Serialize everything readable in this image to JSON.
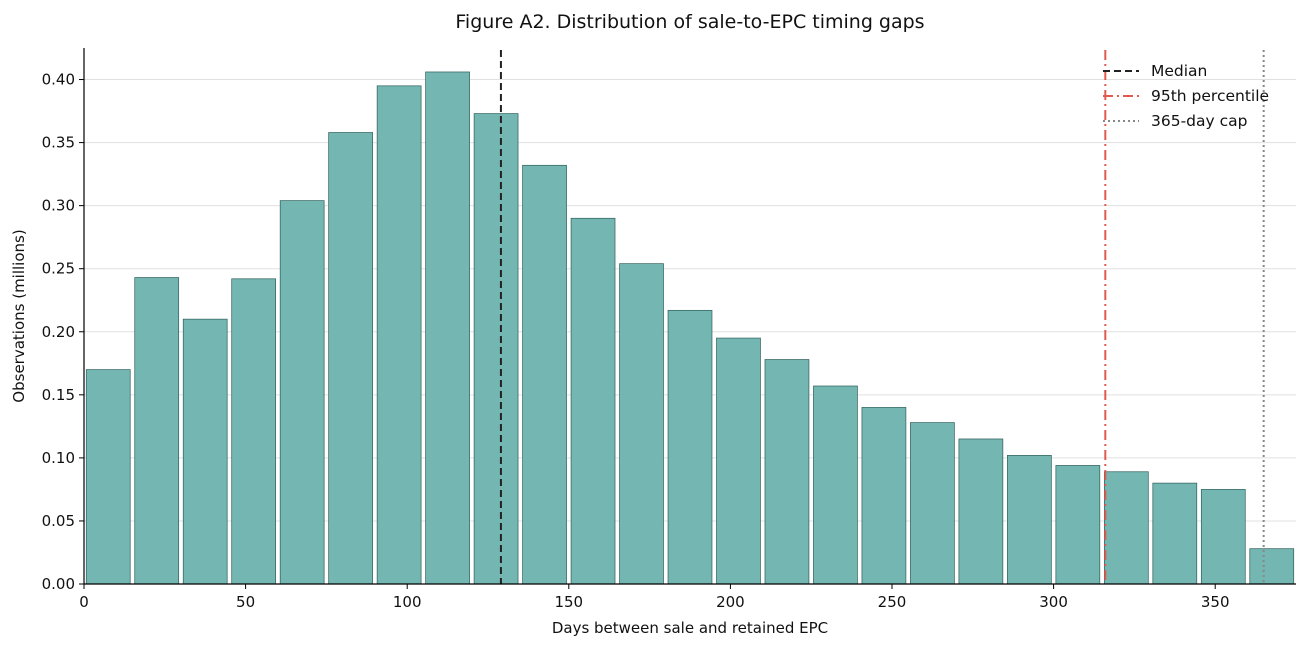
{
  "chart_data": {
    "type": "bar",
    "title": "Figure A2. Distribution of sale-to-EPC timing gaps",
    "xlabel": "Days between sale and retained EPC",
    "ylabel": "Observations (millions)",
    "xlim": [
      0,
      375
    ],
    "ylim": [
      0,
      0.425
    ],
    "bin_width": 15,
    "bin_starts": [
      0,
      15,
      30,
      45,
      60,
      75,
      90,
      105,
      120,
      135,
      150,
      165,
      180,
      195,
      210,
      225,
      240,
      255,
      270,
      285,
      300,
      315,
      330,
      345,
      360
    ],
    "values": [
      0.17,
      0.243,
      0.21,
      0.242,
      0.304,
      0.358,
      0.395,
      0.406,
      0.373,
      0.332,
      0.29,
      0.254,
      0.217,
      0.195,
      0.178,
      0.157,
      0.14,
      0.128,
      0.115,
      0.102,
      0.094,
      0.089,
      0.08,
      0.075,
      0.028
    ],
    "bar_color": "#73b6b2",
    "x_ticks": [
      0,
      50,
      100,
      150,
      200,
      250,
      300,
      350
    ],
    "y_ticks": [
      0.0,
      0.05,
      0.1,
      0.15,
      0.2,
      0.25,
      0.3,
      0.35,
      0.4
    ],
    "y_tick_labels": [
      "0.00",
      "0.05",
      "0.10",
      "0.15",
      "0.20",
      "0.25",
      "0.30",
      "0.35",
      "0.40"
    ],
    "grid": "horizontal",
    "reference_lines": [
      {
        "name": "Median",
        "x": 129,
        "color": "#222222",
        "style": "dashed"
      },
      {
        "name": "95th percentile",
        "x": 316,
        "color": "#e05a4f",
        "style": "dashdot"
      },
      {
        "name": "365-day cap",
        "x": 365,
        "color": "#888888",
        "style": "dotted"
      }
    ],
    "legend_position": "top-right"
  }
}
